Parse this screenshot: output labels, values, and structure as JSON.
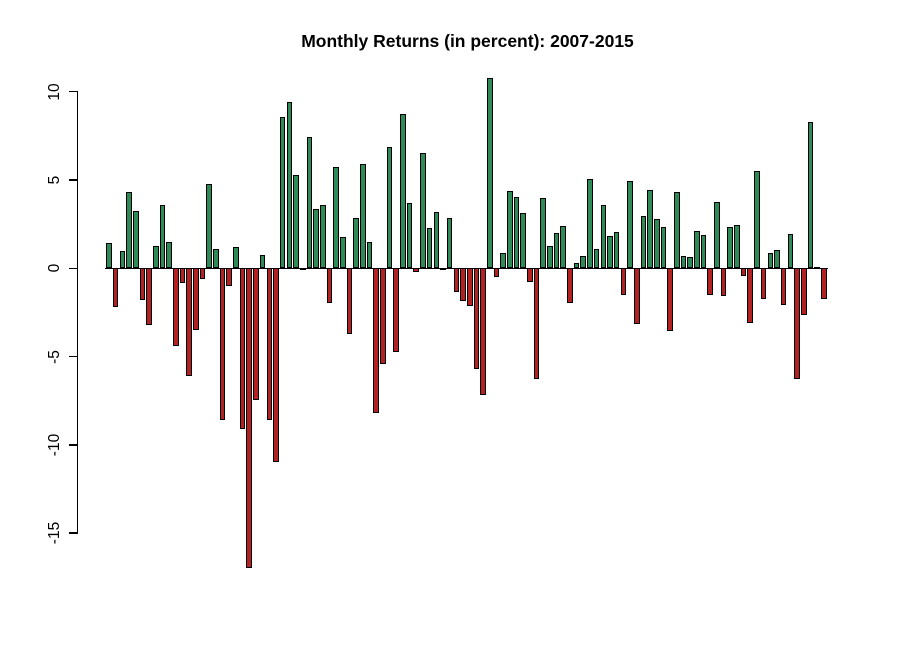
{
  "chart_data": {
    "type": "bar",
    "title": "Monthly Returns (in percent): 2007-2015",
    "period": {
      "start_year": 2007,
      "end_year": 2015,
      "frequency": "monthly",
      "n_bars": 108
    },
    "y_axis": {
      "tick_labels": [
        "10",
        "5",
        "0",
        "-5",
        "-10",
        "-15"
      ],
      "tick_values": [
        10,
        5,
        0,
        -5,
        -10,
        -15
      ],
      "ylim": [
        -17.5,
        11.5
      ]
    },
    "x_axis": {
      "labels_shown": false
    },
    "grid": false,
    "legend": "none",
    "colors": {
      "positive_bar": "#2E8B57",
      "negative_bar": "#B22222",
      "bar_border": "#000000",
      "axis": "#000000",
      "background": "#FFFFFF",
      "title_text": "#000000"
    },
    "values": [
      1.41,
      -2.18,
      1.0,
      4.33,
      3.25,
      -1.78,
      -3.2,
      1.29,
      3.58,
      1.48,
      -4.4,
      -0.86,
      -6.12,
      -3.48,
      -0.6,
      4.75,
      1.07,
      -8.6,
      -0.99,
      1.22,
      -9.08,
      -16.94,
      -7.48,
      0.78,
      -8.57,
      -10.99,
      8.54,
      9.39,
      5.31,
      0.02,
      7.41,
      3.36,
      3.57,
      -1.98,
      5.74,
      1.78,
      -3.7,
      2.85,
      5.88,
      1.48,
      -8.2,
      -5.39,
      6.88,
      -4.74,
      8.76,
      3.69,
      -0.23,
      6.53,
      2.26,
      3.2,
      -0.1,
      2.85,
      -1.35,
      -1.83,
      -2.15,
      -5.68,
      -7.18,
      10.77,
      -0.51,
      0.85,
      4.36,
      4.06,
      3.13,
      -0.75,
      -6.27,
      3.96,
      1.26,
      1.98,
      2.42,
      -1.98,
      0.28,
      0.71,
      5.04,
      1.11,
      3.6,
      1.81,
      2.08,
      -1.5,
      4.95,
      -3.13,
      2.97,
      4.46,
      2.8,
      2.36,
      -3.56,
      4.31,
      0.69,
      0.62,
      2.1,
      1.91,
      -1.51,
      3.77,
      -1.55,
      2.32,
      2.45,
      -0.42,
      -3.1,
      5.49,
      -1.74,
      0.85,
      1.05,
      -2.1,
      1.97,
      -6.26,
      -2.64,
      8.3,
      0.05,
      -1.75
    ]
  },
  "layout_note": ""
}
